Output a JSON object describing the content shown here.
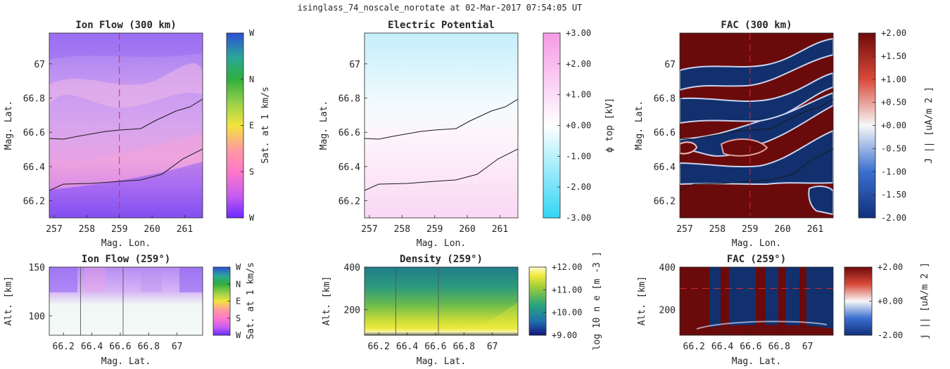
{
  "figure": {
    "suptitle": "isinglass_74_noscale_norotate at 02-Mar-2017 07:54:05 UT"
  },
  "colors": {
    "axis": "#262626",
    "red_dashes": "#e0282d",
    "boundary_lines": "#1a1a1a"
  },
  "chart_data": [
    {
      "id": "ion_flow_300",
      "type": "heatmap",
      "title": "Ion Flow (300 km)",
      "xlabel": "Mag. Lon.",
      "ylabel": "Mag. Lat.",
      "xlim": [
        256.85,
        261.55
      ],
      "ylim": [
        66.1,
        67.18
      ],
      "xticks": [
        257,
        258,
        259,
        260,
        261
      ],
      "xticklabels": [
        "257",
        "258",
        "259",
        "260",
        "261"
      ],
      "yticks": [
        66.2,
        66.4,
        66.6,
        66.8,
        67
      ],
      "yticklabels": [
        "66.2",
        "66.4",
        "66.6",
        "66.8",
        "67"
      ],
      "colorbar": {
        "label": "Sat. at 1 km/s",
        "ticklabels": [
          "W",
          "S",
          "E",
          "N",
          "W"
        ],
        "colormap": "hue-circular"
      },
      "marker_lon": 259
    },
    {
      "id": "electric_potential",
      "type": "heatmap",
      "title": "Electric Potential",
      "xlabel": "Mag. Lon.",
      "ylabel": "Mag. Lat.",
      "xlim": [
        256.85,
        261.55
      ],
      "ylim": [
        66.1,
        67.18
      ],
      "xticks": [
        257,
        258,
        259,
        260,
        261
      ],
      "xticklabels": [
        "257",
        "258",
        "259",
        "260",
        "261"
      ],
      "yticks": [
        66.2,
        66.4,
        66.6,
        66.8,
        67
      ],
      "yticklabels": [
        "66.2",
        "66.4",
        "66.6",
        "66.8",
        "67"
      ],
      "colorbar": {
        "label": "ϕ top [kV]",
        "clim": [
          -3,
          3
        ],
        "ticklabels": [
          "-3.00",
          "-2.00",
          "-1.00",
          "+0.00",
          "+1.00",
          "+2.00",
          "+3.00"
        ]
      }
    },
    {
      "id": "fac_300",
      "type": "heatmap",
      "title": "FAC (300 km)",
      "xlabel": "Mag. Lon.",
      "ylabel": "Mag. Lat.",
      "xlim": [
        256.85,
        261.55
      ],
      "ylim": [
        66.1,
        67.18
      ],
      "xticks": [
        257,
        258,
        259,
        260,
        261
      ],
      "xticklabels": [
        "257",
        "258",
        "259",
        "260",
        "261"
      ],
      "yticks": [
        66.2,
        66.4,
        66.6,
        66.8,
        67
      ],
      "yticklabels": [
        "66.2",
        "66.4",
        "66.6",
        "66.8",
        "67"
      ],
      "colorbar": {
        "label": "J || [uA/m 2 ]",
        "clim": [
          -2,
          2
        ],
        "ticklabels": [
          "-2.00",
          "-1.50",
          "-1.00",
          "-0.50",
          "+0.00",
          "+0.50",
          "+1.00",
          "+1.50",
          "+2.00"
        ]
      },
      "marker_lon": 259
    },
    {
      "id": "ion_flow_259",
      "type": "heatmap",
      "title": "Ion Flow (259°)",
      "xlabel": "Mag. Lat.",
      "ylabel": "Alt. [km]",
      "xlim": [
        66.1,
        67.18
      ],
      "ylim": [
        80,
        150
      ],
      "xticks": [
        66.2,
        66.4,
        66.6,
        66.8,
        67
      ],
      "xticklabels": [
        "66.2",
        "66.4",
        "66.6",
        "66.8",
        "67"
      ],
      "yticks": [
        100,
        150
      ],
      "yticklabels": [
        "100",
        "150"
      ],
      "colorbar": {
        "label": "Sat. at 1 km/s",
        "ticklabels": [
          "W",
          "S",
          "E",
          "N",
          "W"
        ],
        "colormap": "hue-circular"
      },
      "boundary_lats": [
        66.32,
        66.62
      ]
    },
    {
      "id": "density_259",
      "type": "heatmap",
      "title": "Density (259°)",
      "xlabel": "Mag. Lat.",
      "ylabel": "Alt. [km]",
      "xlim": [
        66.1,
        67.18
      ],
      "ylim": [
        80,
        400
      ],
      "xticks": [
        66.2,
        66.4,
        66.6,
        66.8,
        67
      ],
      "xticklabels": [
        "66.2",
        "66.4",
        "66.6",
        "66.8",
        "67"
      ],
      "yticks": [
        200,
        400
      ],
      "yticklabels": [
        "200",
        "400"
      ],
      "colorbar": {
        "label": "log 10 n e [m -3 ]",
        "clim": [
          9,
          12
        ],
        "ticklabels": [
          "+9.00",
          "+10.00",
          "+11.00",
          "+12.00"
        ]
      },
      "boundary_lats": [
        66.32,
        66.62
      ]
    },
    {
      "id": "fac_259",
      "type": "heatmap",
      "title": "FAC (259°)",
      "xlabel": "Mag. Lat.",
      "ylabel": "Alt. [km]",
      "xlim": [
        66.1,
        67.18
      ],
      "ylim": [
        80,
        400
      ],
      "xticks": [
        66.2,
        66.4,
        66.6,
        66.8,
        67
      ],
      "xticklabels": [
        "66.2",
        "66.4",
        "66.6",
        "66.8",
        "67"
      ],
      "yticks": [
        200,
        400
      ],
      "yticklabels": [
        "200",
        "400"
      ],
      "colorbar": {
        "label": "j || [uA/m 2 ]",
        "clim": [
          -2,
          2
        ],
        "ticklabels": [
          "-2.00",
          "+0.00",
          "+2.00"
        ]
      },
      "marker_alt": 300
    }
  ]
}
